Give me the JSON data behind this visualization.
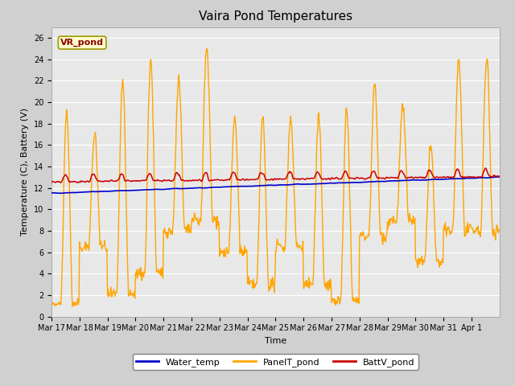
{
  "title": "Vaira Pond Temperatures",
  "xlabel": "Time",
  "ylabel": "Temperature (C), Battery (V)",
  "annotation": "VR_pond",
  "ylim": [
    0,
    27
  ],
  "yticks": [
    0,
    2,
    4,
    6,
    8,
    10,
    12,
    14,
    16,
    18,
    20,
    22,
    24,
    26
  ],
  "xtick_labels": [
    "Mar 17",
    "Mar 18",
    "Mar 19",
    "Mar 20",
    "Mar 21",
    "Mar 22",
    "Mar 23",
    "Mar 24",
    "Mar 25",
    "Mar 26",
    "Mar 27",
    "Mar 28",
    "Mar 29",
    "Mar 30",
    "Mar 31",
    "Apr 1"
  ],
  "line_colors": {
    "water": "#0000cc",
    "panel": "#ffa500",
    "batt": "#cc0000"
  },
  "legend_labels": [
    "Water_temp",
    "PanelT_pond",
    "BattV_pond"
  ],
  "fig_bg_color": "#d0d0d0",
  "plot_bg_color": "#e8e8e8",
  "grid_color": "#ffffff",
  "annotation_bg": "#ffffcc",
  "annotation_border": "#999900",
  "annotation_text_color": "#8b0000",
  "title_fontsize": 11,
  "label_fontsize": 8,
  "tick_fontsize": 7
}
